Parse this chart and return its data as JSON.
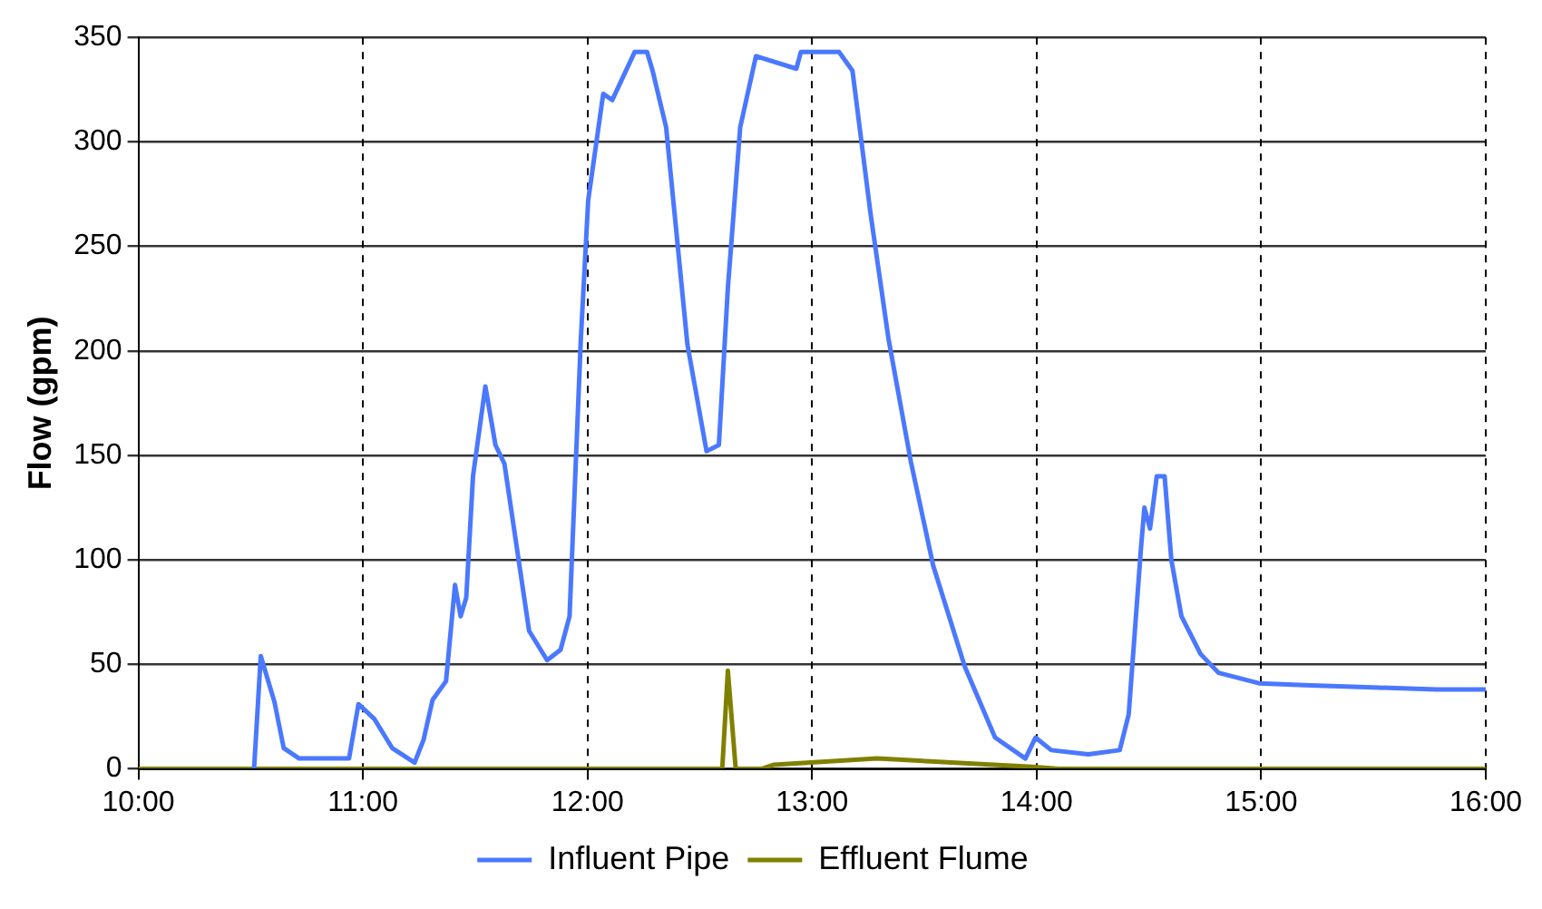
{
  "chart_data": {
    "type": "line",
    "ylabel": "Flow (gpm)",
    "xlim": [
      10,
      16
    ],
    "xticks": [
      {
        "value": 10,
        "label": "10:00"
      },
      {
        "value": 11,
        "label": "11:00"
      },
      {
        "value": 12,
        "label": "12:00"
      },
      {
        "value": 13,
        "label": "13:00"
      },
      {
        "value": 14,
        "label": "14:00"
      },
      {
        "value": 15,
        "label": "15:00"
      },
      {
        "value": 16,
        "label": "16:00"
      }
    ],
    "ylim": [
      0,
      350
    ],
    "yticks": [
      0,
      50,
      100,
      150,
      200,
      250,
      300,
      350
    ],
    "grid": true,
    "legend": "bottom",
    "marker": "none",
    "line_style": "solid",
    "series": [
      {
        "name": "Influent Pipe",
        "color": "#4a78ff",
        "x": [
          10.515,
          10.545,
          10.606,
          10.647,
          10.716,
          10.938,
          10.98,
          11.05,
          11.13,
          11.23,
          11.27,
          11.31,
          11.37,
          11.41,
          11.435,
          11.46,
          11.49,
          11.545,
          11.59,
          11.63,
          11.74,
          11.82,
          11.88,
          11.92,
          11.97,
          12.003,
          12.07,
          12.11,
          12.21,
          12.265,
          12.29,
          12.35,
          12.445,
          12.53,
          12.585,
          12.625,
          12.68,
          12.75,
          12.93,
          12.95,
          13.12,
          13.18,
          13.26,
          13.34,
          13.44,
          13.54,
          13.68,
          13.815,
          13.95,
          13.995,
          14.065,
          14.23,
          14.37,
          14.41,
          14.465,
          14.48,
          14.505,
          14.535,
          14.57,
          14.6,
          14.645,
          14.73,
          14.81,
          14.99,
          15.22,
          15.5,
          15.78,
          16
        ],
        "values": [
          0,
          54,
          32,
          10,
          5,
          5,
          31,
          24,
          10,
          3,
          14,
          33,
          42,
          88,
          73,
          82,
          140,
          183,
          155,
          146,
          66,
          52,
          57,
          73,
          205,
          272,
          323,
          320,
          343,
          343,
          334,
          307,
          203,
          152,
          155,
          230,
          307,
          341,
          335,
          343,
          343,
          334,
          266,
          206,
          147,
          97,
          49,
          15,
          5,
          15,
          9,
          7,
          9,
          26,
          106,
          125,
          115,
          140,
          140,
          100,
          73,
          55,
          46,
          41,
          40,
          39,
          38,
          38
        ]
      },
      {
        "name": "Effluent Flume",
        "color": "#808000",
        "x": [
          10,
          12.6,
          12.625,
          12.66,
          12.775,
          12.83,
          13.29,
          13.98,
          14.1,
          16
        ],
        "values": [
          0,
          0,
          47,
          0,
          0,
          2,
          5,
          1,
          0,
          0
        ]
      }
    ]
  }
}
